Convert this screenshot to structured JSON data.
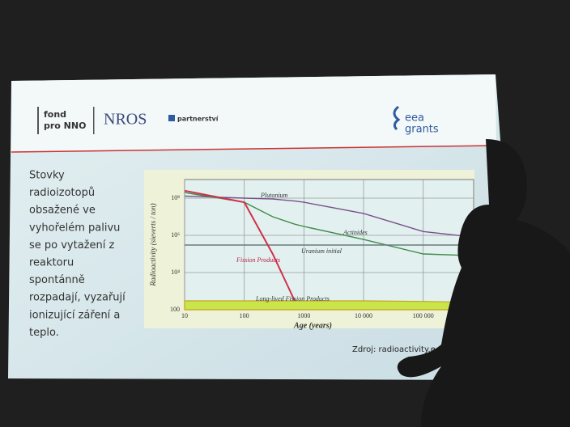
{
  "slide": {
    "logos": {
      "fond": "fond",
      "pro": "pro NNO",
      "nros": "NROS",
      "partner": "partnerství",
      "eea": "eea",
      "grants": "grants"
    },
    "text_lines": [
      "Stovky",
      "radioizotopů",
      "obsažené ve",
      "vyhořelém palivu",
      "se po vytažení z",
      "reaktoru",
      "spontánně",
      "rozpadají, vyzařují",
      "ionizující záření a",
      "teplo."
    ],
    "source": "Zdroj: radioactivity.e"
  },
  "chart_data": {
    "type": "line",
    "x_label": "Age (years)",
    "y_label": "Radioactivity  (sieverts / ton)",
    "log_x": true,
    "log_y": true,
    "grid": true,
    "x": [
      10,
      100,
      300,
      700,
      1000,
      10000,
      100000,
      700000
    ],
    "xlim": [
      10,
      700000
    ],
    "ylim": [
      100,
      1000000000
    ],
    "xticks": [
      10,
      100,
      1000,
      {
        "value": 10000,
        "label": "10 000"
      },
      {
        "value": 100000,
        "label": "100 000"
      }
    ],
    "yticks": [
      {
        "value": 100000000,
        "label": "10⁸"
      },
      {
        "value": 1000000,
        "label": "10⁶"
      },
      {
        "value": 10000,
        "label": "10⁴"
      },
      100
    ],
    "series": [
      {
        "name": "Plutonium",
        "color": "#7a4f8a",
        "values": [
          130000000,
          100000000,
          90000000,
          70000000,
          60000000,
          15000000,
          1600000,
          800000
        ]
      },
      {
        "name": "Actinides",
        "color": "#3f8a4a",
        "values": [
          200000000,
          60000000,
          10000000,
          4000000,
          3000000,
          600000,
          100000,
          80000
        ]
      },
      {
        "name": "Uranium initial",
        "color": "#6a7a7a",
        "values": [
          300000,
          300000,
          300000,
          300000,
          300000,
          300000,
          300000,
          300000
        ]
      },
      {
        "name": "Fission Products",
        "color": "#d0304a",
        "values": [
          250000000,
          60000000,
          100000,
          300,
          null,
          null,
          null,
          null
        ]
      },
      {
        "name": "Long-lived Fission Products",
        "color": "#c8e64a",
        "values": [
          300,
          300,
          300,
          300,
          300,
          300,
          280,
          250
        ]
      }
    ]
  }
}
